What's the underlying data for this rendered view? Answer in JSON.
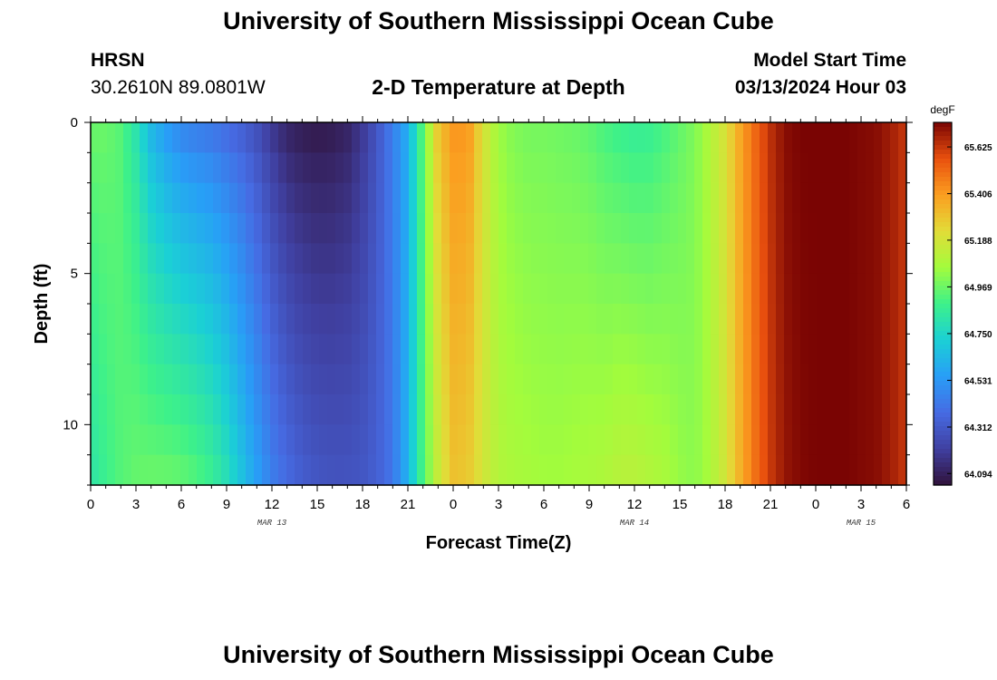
{
  "header": {
    "title": "University of Southern Mississippi Ocean Cube",
    "station_code": "HRSN",
    "station_coords": "30.2610N  89.0801W",
    "chart_title": "2-D Temperature at Depth",
    "start_time_label": "Model Start Time",
    "start_time_value": "03/13/2024 Hour 03"
  },
  "footer": {
    "title": "University of Southern Mississippi Ocean Cube"
  },
  "chart_data": {
    "type": "heatmap",
    "title": "2-D Temperature at Depth",
    "xlabel": "Forecast Time(Z)",
    "ylabel": "Depth (ft)",
    "x_range_hours": [
      0,
      54
    ],
    "y_range_ft": [
      0,
      12
    ],
    "x_ticks": [
      "0",
      "3",
      "6",
      "9",
      "12",
      "15",
      "18",
      "21",
      "0",
      "3",
      "6",
      "9",
      "12",
      "15",
      "18",
      "21",
      "0",
      "3",
      "6"
    ],
    "x_tick_hours": [
      0,
      3,
      6,
      9,
      12,
      15,
      18,
      21,
      24,
      27,
      30,
      33,
      36,
      39,
      42,
      45,
      48,
      51,
      54
    ],
    "date_labels": [
      {
        "text": "MAR 13",
        "hour": 12
      },
      {
        "text": "MAR 14",
        "hour": 36
      },
      {
        "text": "MAR 15",
        "hour": 51
      }
    ],
    "y_ticks": [
      "0",
      "5",
      "10"
    ],
    "y_tick_values": [
      0,
      5,
      10
    ],
    "colorbar": {
      "unit": "degF",
      "min": 64.04,
      "max": 65.74,
      "labels": [
        "65.625",
        "65.406",
        "65.188",
        "64.969",
        "64.750",
        "64.531",
        "64.312",
        "64.094"
      ],
      "label_values": [
        65.625,
        65.406,
        65.188,
        64.969,
        64.75,
        64.531,
        64.312,
        64.094
      ]
    },
    "time_profile_hours": [
      0,
      1,
      2,
      3,
      4,
      5,
      6,
      7,
      8,
      9,
      10,
      11,
      12,
      13,
      14,
      15,
      16,
      17,
      18,
      19,
      20,
      21,
      22,
      23,
      24,
      25,
      26,
      27,
      28,
      29,
      30,
      31,
      32,
      33,
      34,
      35,
      36,
      37,
      38,
      39,
      40,
      41,
      42,
      43,
      44,
      45,
      46,
      47,
      48,
      49,
      50,
      51,
      52,
      53,
      54
    ],
    "surface_temp_degF": [
      64.97,
      64.97,
      64.93,
      64.8,
      64.62,
      64.52,
      64.45,
      64.42,
      64.4,
      64.36,
      64.32,
      64.26,
      64.17,
      64.1,
      64.07,
      64.06,
      64.07,
      64.1,
      64.18,
      64.3,
      64.45,
      64.6,
      64.95,
      65.3,
      65.42,
      65.42,
      65.2,
      65.05,
      65.0,
      64.98,
      64.98,
      64.97,
      64.96,
      64.94,
      64.9,
      64.87,
      64.85,
      64.86,
      64.9,
      64.95,
      65.0,
      65.1,
      65.2,
      65.38,
      65.52,
      65.64,
      65.72,
      65.74,
      65.74,
      65.74,
      65.74,
      65.73,
      65.72,
      65.68,
      65.62
    ],
    "bottom_temp_degF": [
      64.82,
      64.88,
      64.93,
      64.96,
      64.97,
      64.97,
      64.96,
      64.93,
      64.88,
      64.8,
      64.68,
      64.56,
      64.45,
      64.38,
      64.33,
      64.3,
      64.29,
      64.29,
      64.3,
      64.34,
      64.42,
      64.62,
      64.92,
      65.15,
      65.3,
      65.28,
      65.18,
      65.1,
      65.08,
      65.07,
      65.06,
      65.06,
      65.07,
      65.08,
      65.09,
      65.12,
      65.12,
      65.1,
      65.08,
      65.04,
      65.02,
      65.08,
      65.18,
      65.35,
      65.5,
      65.62,
      65.7,
      65.73,
      65.74,
      65.74,
      65.74,
      65.73,
      65.72,
      65.68,
      65.62
    ]
  }
}
